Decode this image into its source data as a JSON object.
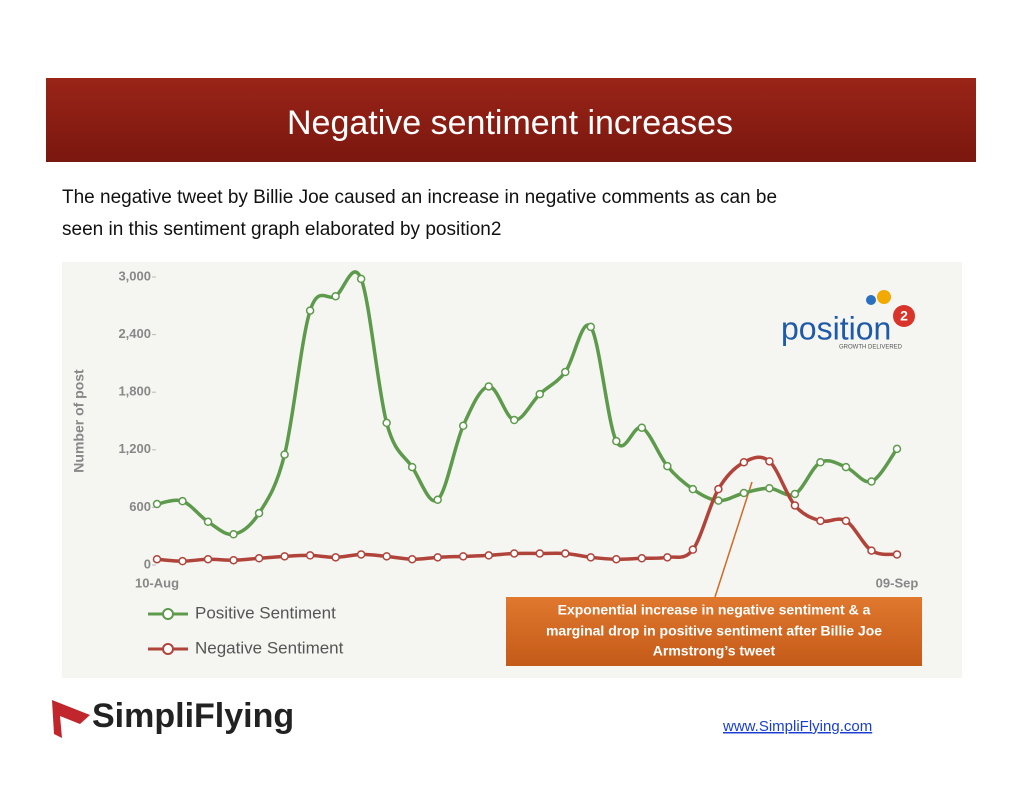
{
  "slide": {
    "title": "Negative sentiment increases",
    "body": [
      "The negative tweet by Billie Joe caused an increase in negative comments as can be",
      "seen in this sentiment graph elaborated by position2"
    ],
    "logo_left": "SimpliFlying",
    "url": "www.SimpliFlying.com",
    "logo_chart": {
      "word": "position",
      "digit": "2",
      "tagline": "GROWTH DELIVERED"
    }
  },
  "chart_data": {
    "type": "line",
    "ylabel": "Number of post",
    "categories": [
      "10-Aug",
      null,
      null,
      null,
      null,
      null,
      null,
      null,
      null,
      null,
      null,
      null,
      null,
      null,
      null,
      null,
      null,
      null,
      null,
      null,
      null,
      null,
      null,
      null,
      null,
      null,
      null,
      null,
      null,
      "09-Sep"
    ],
    "ylim": [
      0,
      3000
    ],
    "yticks": [
      0,
      600,
      {
        "value": 1200,
        "label": "1,200"
      },
      {
        "value": 1800,
        "label": "1,800"
      },
      {
        "value": 2400,
        "label": "2,400"
      },
      {
        "value": 3000,
        "label": "3,000"
      }
    ],
    "grid": false,
    "series": [
      {
        "name": "Positive Sentiment",
        "color": "#5d9a4b",
        "values": [
          635,
          665,
          450,
          320,
          540,
          1150,
          2650,
          2800,
          2980,
          1480,
          1020,
          680,
          1450,
          1860,
          1510,
          1780,
          2010,
          2480,
          1290,
          1430,
          1030,
          790,
          670,
          750,
          800,
          740,
          1070,
          1020,
          870,
          1210
        ]
      },
      {
        "name": "Negative Sentiment",
        "color": "#b0443a",
        "values": [
          60,
          40,
          60,
          50,
          70,
          90,
          100,
          80,
          110,
          90,
          60,
          80,
          90,
          100,
          120,
          120,
          120,
          80,
          60,
          70,
          80,
          160,
          790,
          1070,
          1080,
          620,
          460,
          460,
          150,
          110
        ]
      }
    ],
    "annotation": [
      "Exponential increase in negative sentiment & a",
      "marginal drop in positive sentiment after Billie Joe",
      "Armstrong’s tweet"
    ]
  }
}
